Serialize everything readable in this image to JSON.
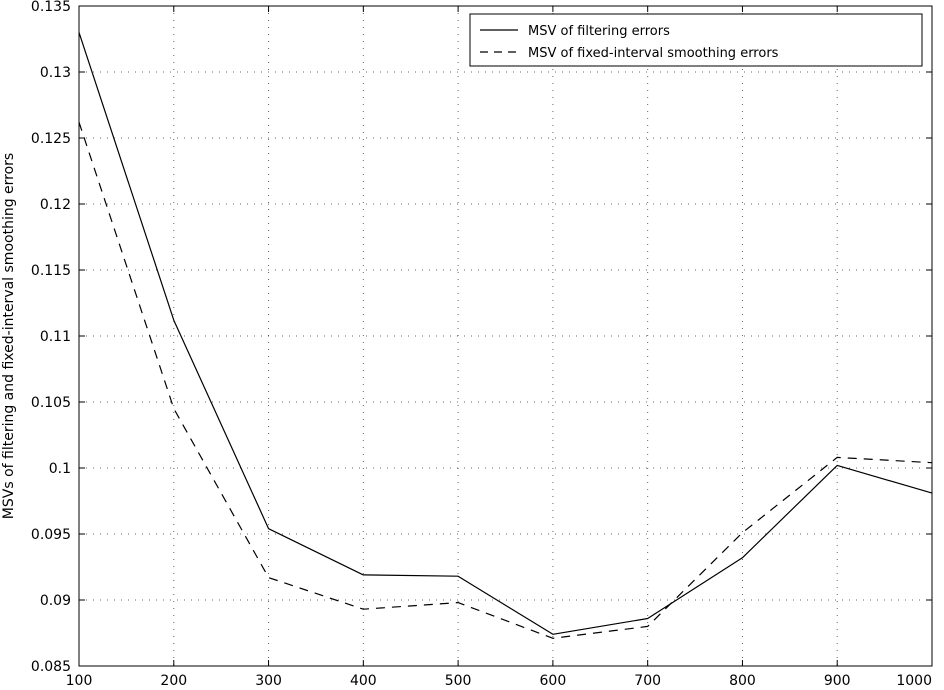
{
  "chart_data": {
    "type": "line",
    "title": "",
    "xlabel": "",
    "ylabel": "MSVs of filtering and fixed-interval smoothing errors",
    "xlim": [
      100,
      1000
    ],
    "ylim": [
      0.085,
      0.135
    ],
    "x": [
      100,
      200,
      300,
      400,
      500,
      600,
      700,
      800,
      900,
      1000
    ],
    "xticks": [
      "100",
      "200",
      "300",
      "400",
      "500",
      "600",
      "700",
      "800",
      "900",
      "1000"
    ],
    "yticks": [
      "0.085",
      "0.09",
      "0.095",
      "0.1",
      "0.105",
      "0.11",
      "0.115",
      "0.12",
      "0.125",
      "0.13",
      "0.135"
    ],
    "grid": true,
    "legend_position": "top-right",
    "series": [
      {
        "name": "MSV of filtering errors",
        "style": "solid",
        "color": "#000000",
        "values": [
          0.133,
          0.1112,
          0.0954,
          0.0919,
          0.0918,
          0.0874,
          0.0886,
          0.0932,
          0.1002,
          0.0981
        ]
      },
      {
        "name": "MSV of fixed-interval smoothing errors",
        "style": "dashed",
        "color": "#000000",
        "values": [
          0.1262,
          0.1045,
          0.0917,
          0.0893,
          0.0898,
          0.0871,
          0.088,
          0.0951,
          0.1008,
          0.1004
        ]
      }
    ]
  }
}
